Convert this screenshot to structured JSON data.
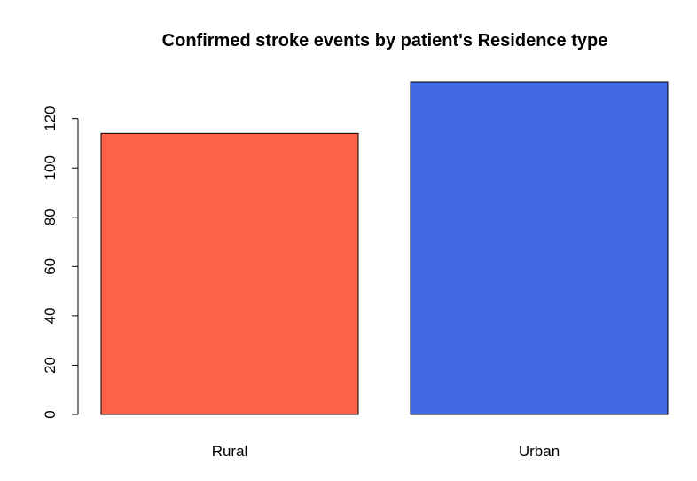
{
  "chart_data": {
    "type": "bar",
    "title": "Confirmed stroke events by patient's Residence type",
    "xlabel": "",
    "ylabel": "",
    "categories": [
      "Rural",
      "Urban"
    ],
    "values": [
      114,
      135
    ],
    "colors": [
      "#ff6347",
      "#4169e1"
    ],
    "ylim": [
      0,
      135
    ],
    "yticks": [
      0,
      20,
      40,
      60,
      80,
      100,
      120
    ],
    "grid": false,
    "legend": "none"
  }
}
